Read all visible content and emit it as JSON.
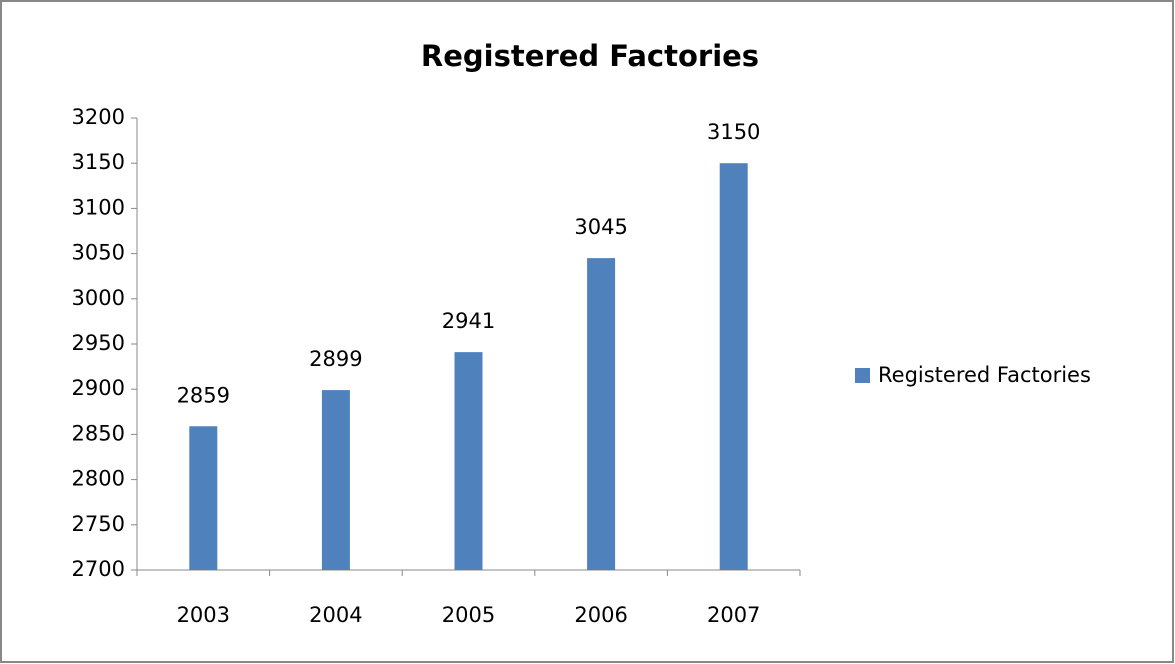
{
  "chart_data": {
    "type": "bar",
    "title": "Registered Factories",
    "categories": [
      "2003",
      "2004",
      "2005",
      "2006",
      "2007"
    ],
    "series": [
      {
        "name": "Registered Factories",
        "color": "#4f81bd",
        "values": [
          2859,
          2899,
          2941,
          3045,
          3150
        ]
      }
    ],
    "ylim": [
      2700,
      3200
    ],
    "yticks": [
      2700,
      2750,
      2800,
      2850,
      2900,
      2950,
      3000,
      3050,
      3100,
      3150,
      3200
    ],
    "grid": false,
    "data_labels": true,
    "legend": "right"
  }
}
